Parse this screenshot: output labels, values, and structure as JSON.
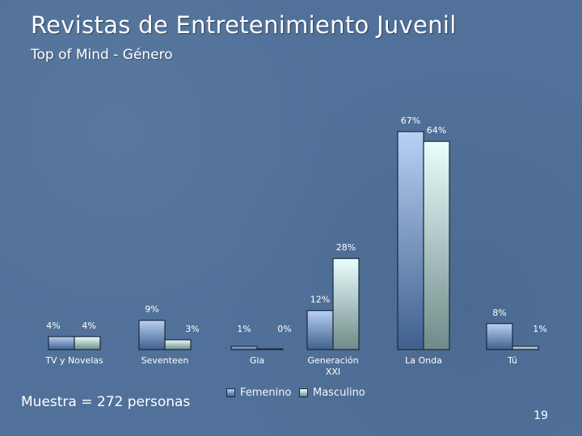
{
  "header": {
    "title": "Revistas de Entretenimiento Juvenil",
    "subtitle": "Top of Mind - Género"
  },
  "footer": {
    "sample_note": "Muestra = 272 personas",
    "page_number": "19"
  },
  "colors": {
    "background": "#51719a",
    "femenino_top": "#b9d1f3",
    "femenino_bottom": "#3f5f8d",
    "masculino_top": "#e9fffe",
    "masculino_bottom": "#6f8a88",
    "bar_outline": "#1b2a3e"
  },
  "chart_data": {
    "type": "bar",
    "title": "Top of Mind - Género",
    "categories": [
      "TV y Novelas",
      "Seventeen",
      "Gia",
      "Generación XXI",
      "La Onda",
      "Tú"
    ],
    "series": [
      {
        "name": "Femenino",
        "values": [
          4,
          9,
          1,
          12,
          67,
          8
        ],
        "labels": [
          "4%",
          "9%",
          "1%",
          "12%",
          "67%",
          "8%"
        ]
      },
      {
        "name": "Masculino",
        "values": [
          4,
          3,
          0,
          28,
          64,
          1
        ],
        "labels": [
          "4%",
          "3%",
          "0%",
          "28%",
          "64%",
          "1%"
        ]
      }
    ],
    "ylim": [
      0,
      67
    ],
    "xlabel": "",
    "ylabel": "",
    "grid": false,
    "legend": [
      "Femenino",
      "Masculino"
    ],
    "legend_position": "bottom"
  }
}
